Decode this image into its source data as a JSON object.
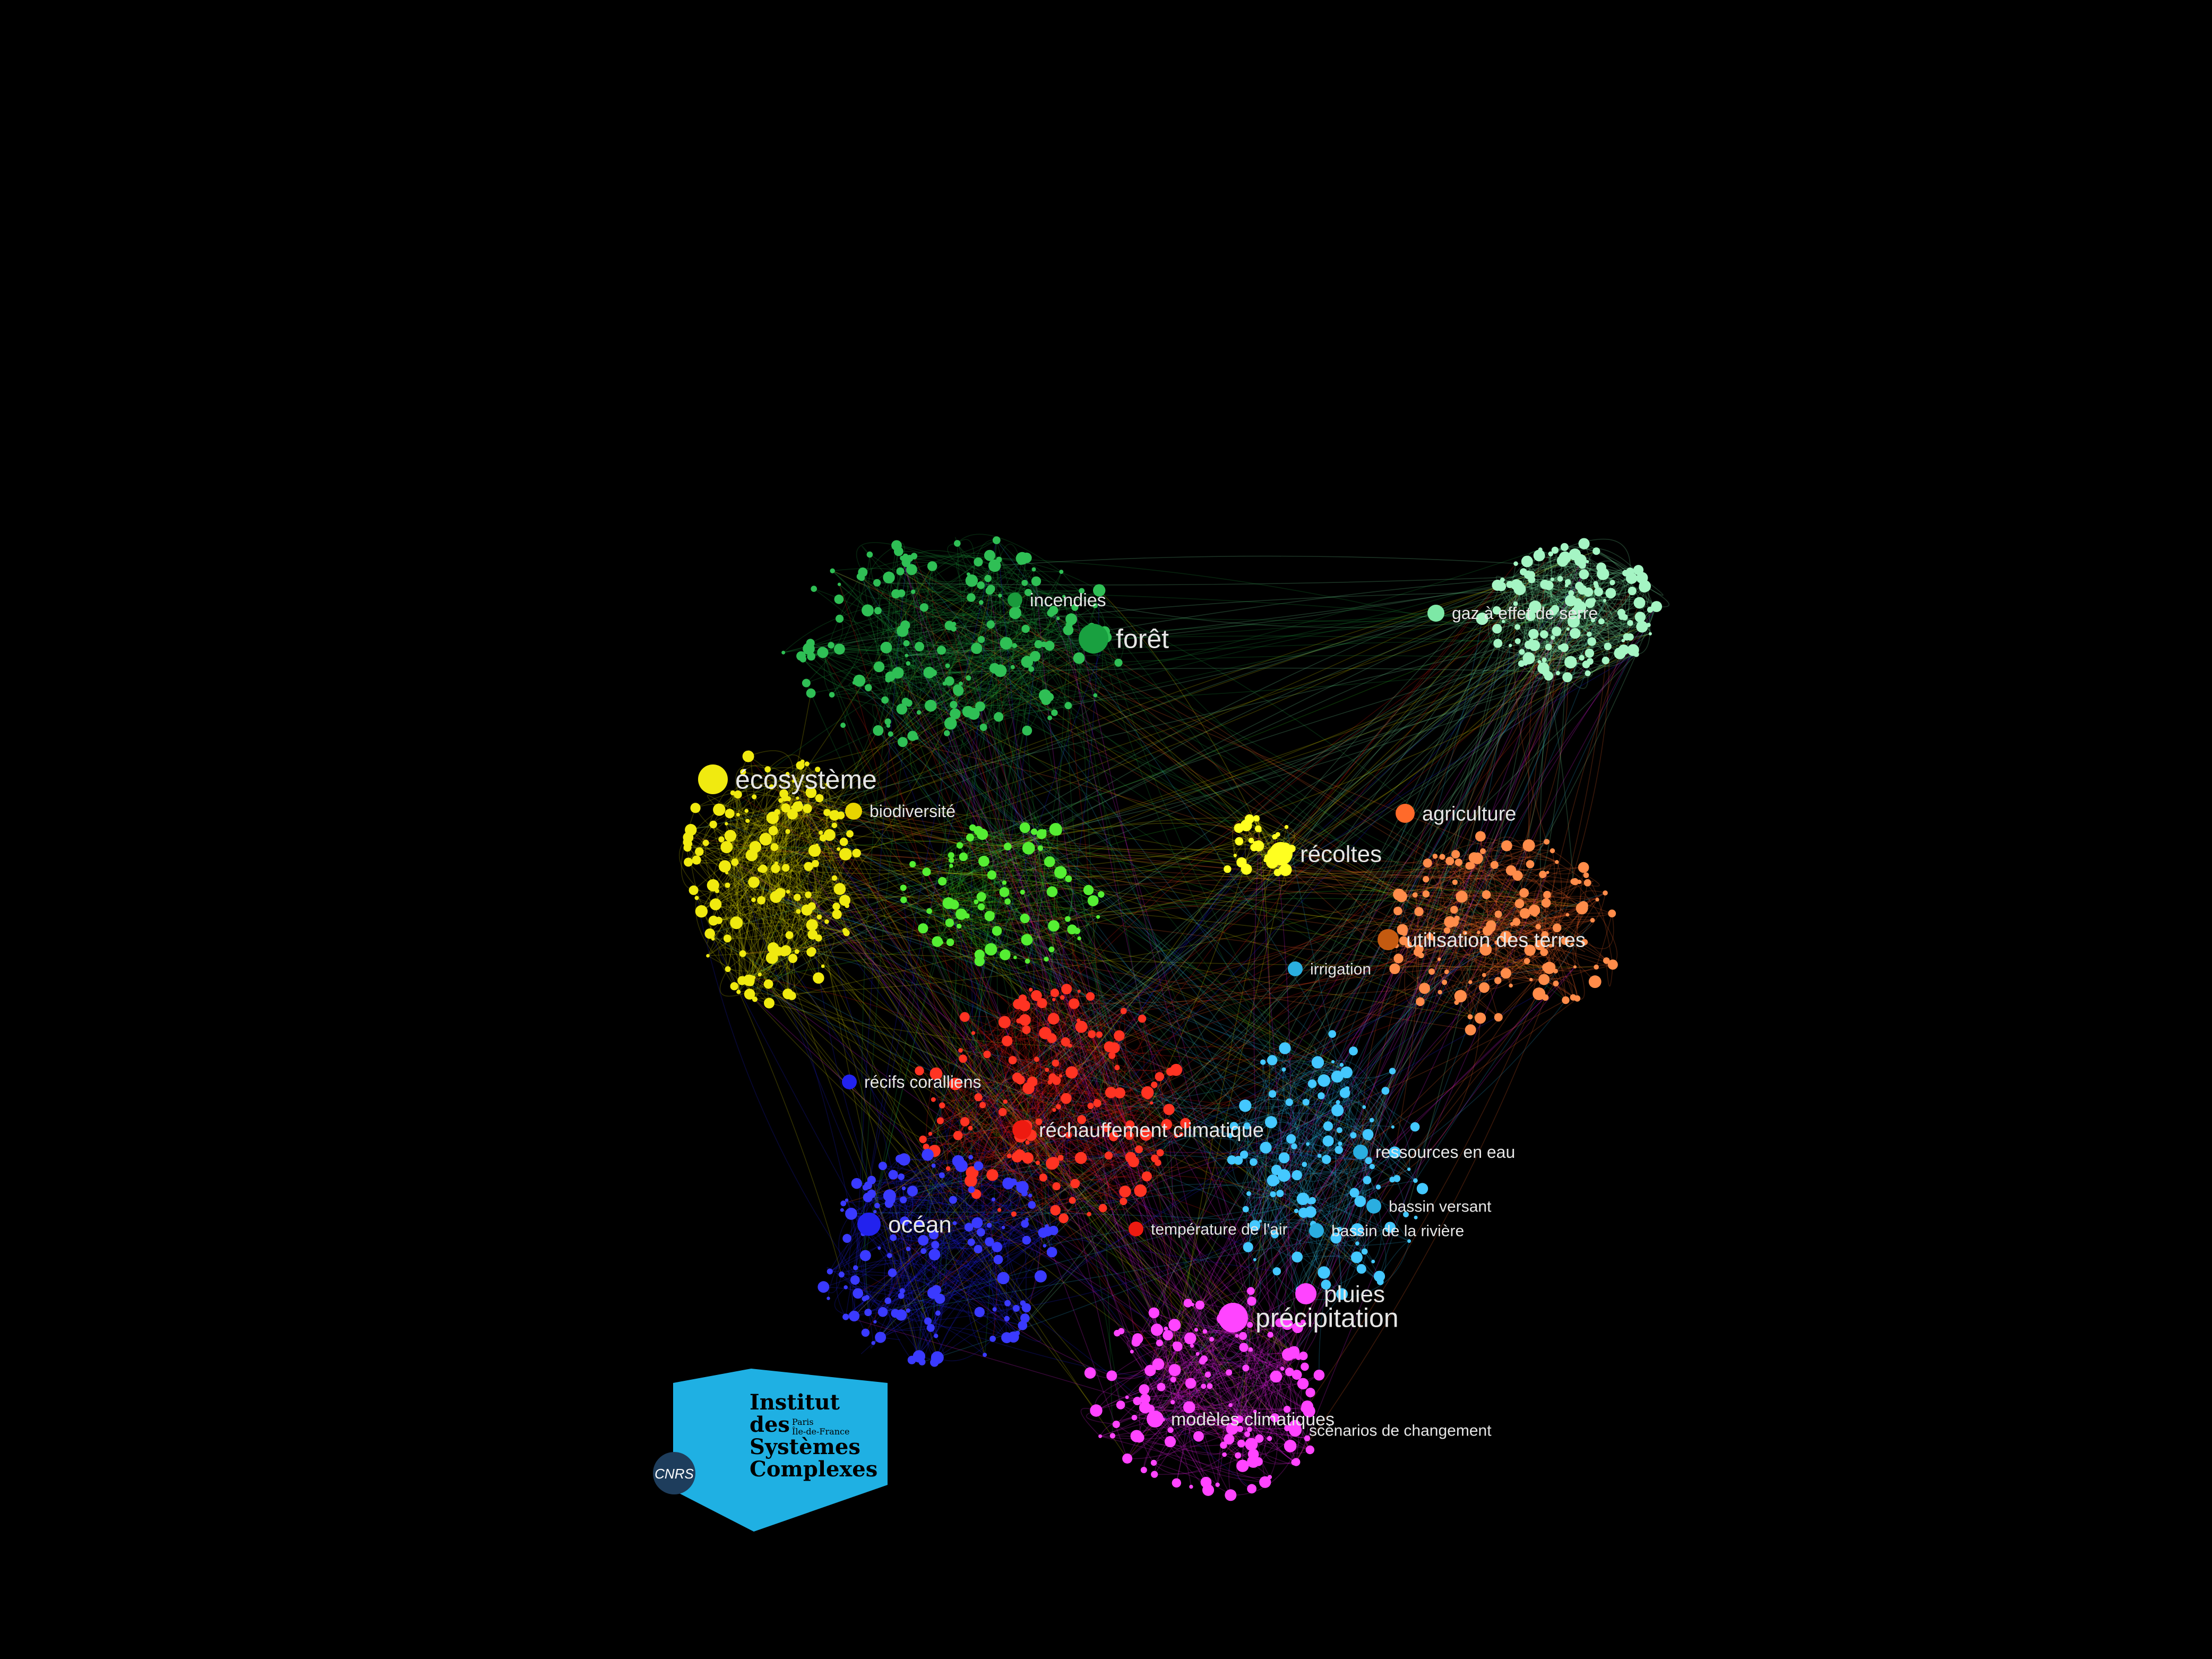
{
  "graph": {
    "clusters": [
      {
        "id": "forest",
        "color": "#1a9a3c",
        "light": "#2fbf55"
      },
      {
        "id": "ghg",
        "color": "#7de8a6",
        "light": "#a5f5c4"
      },
      {
        "id": "eco",
        "color": "#d8d000",
        "light": "#f0ea10"
      },
      {
        "id": "bio",
        "color": "#33cc22",
        "light": "#55ee33"
      },
      {
        "id": "harvest",
        "color": "#f0e800",
        "light": "#ffff20"
      },
      {
        "id": "agri",
        "color": "#ff6a2a",
        "light": "#ff8c4a"
      },
      {
        "id": "warming",
        "color": "#ee1a10",
        "light": "#ff3322"
      },
      {
        "id": "ocean",
        "color": "#2222ee",
        "light": "#3a3aff"
      },
      {
        "id": "water",
        "color": "#2aaee0",
        "light": "#44c8ff"
      },
      {
        "id": "precip",
        "color": "#ee22ee",
        "light": "#ff44ff"
      }
    ],
    "labels": [
      {
        "text": "forêt",
        "cluster": "forest",
        "size": "large"
      },
      {
        "text": "incendies",
        "cluster": "forest",
        "size": "small"
      },
      {
        "text": "gaz à effet de serre",
        "cluster": "ghg",
        "size": "small"
      },
      {
        "text": "écosystème",
        "cluster": "eco",
        "size": "large"
      },
      {
        "text": "biodiversité",
        "cluster": "eco",
        "size": "small"
      },
      {
        "text": "récoltes",
        "cluster": "harvest",
        "size": "medium"
      },
      {
        "text": "agriculture",
        "cluster": "agri",
        "size": "medium"
      },
      {
        "text": "utilisation des terres",
        "cluster": "agri",
        "size": "medium"
      },
      {
        "text": "irrigation",
        "cluster": "water",
        "size": "small"
      },
      {
        "text": "récifs coralliens",
        "cluster": "ocean",
        "size": "small"
      },
      {
        "text": "réchauffement climatique",
        "cluster": "warming",
        "size": "medium"
      },
      {
        "text": "ressources en eau",
        "cluster": "water",
        "size": "small"
      },
      {
        "text": "bassin versant",
        "cluster": "water",
        "size": "small"
      },
      {
        "text": "température de l'air",
        "cluster": "warming",
        "size": "small"
      },
      {
        "text": "bassin de la rivière",
        "cluster": "water",
        "size": "small"
      },
      {
        "text": "océan",
        "cluster": "ocean",
        "size": "large"
      },
      {
        "text": "pluies",
        "cluster": "precip",
        "size": "medium"
      },
      {
        "text": "précipitation",
        "cluster": "precip",
        "size": "large"
      },
      {
        "text": "modèles climatiques",
        "cluster": "precip",
        "size": "small"
      },
      {
        "text": "scénarios de changement",
        "cluster": "precip",
        "size": "small"
      }
    ]
  },
  "logo": {
    "line1": "Institut",
    "line2": "des",
    "line2_small_a": "Paris",
    "line2_small_b": "Île-de-France",
    "line3": "Systèmes",
    "line4": "Complexes",
    "badge": "CNRS",
    "color": "#1fb0e3"
  }
}
